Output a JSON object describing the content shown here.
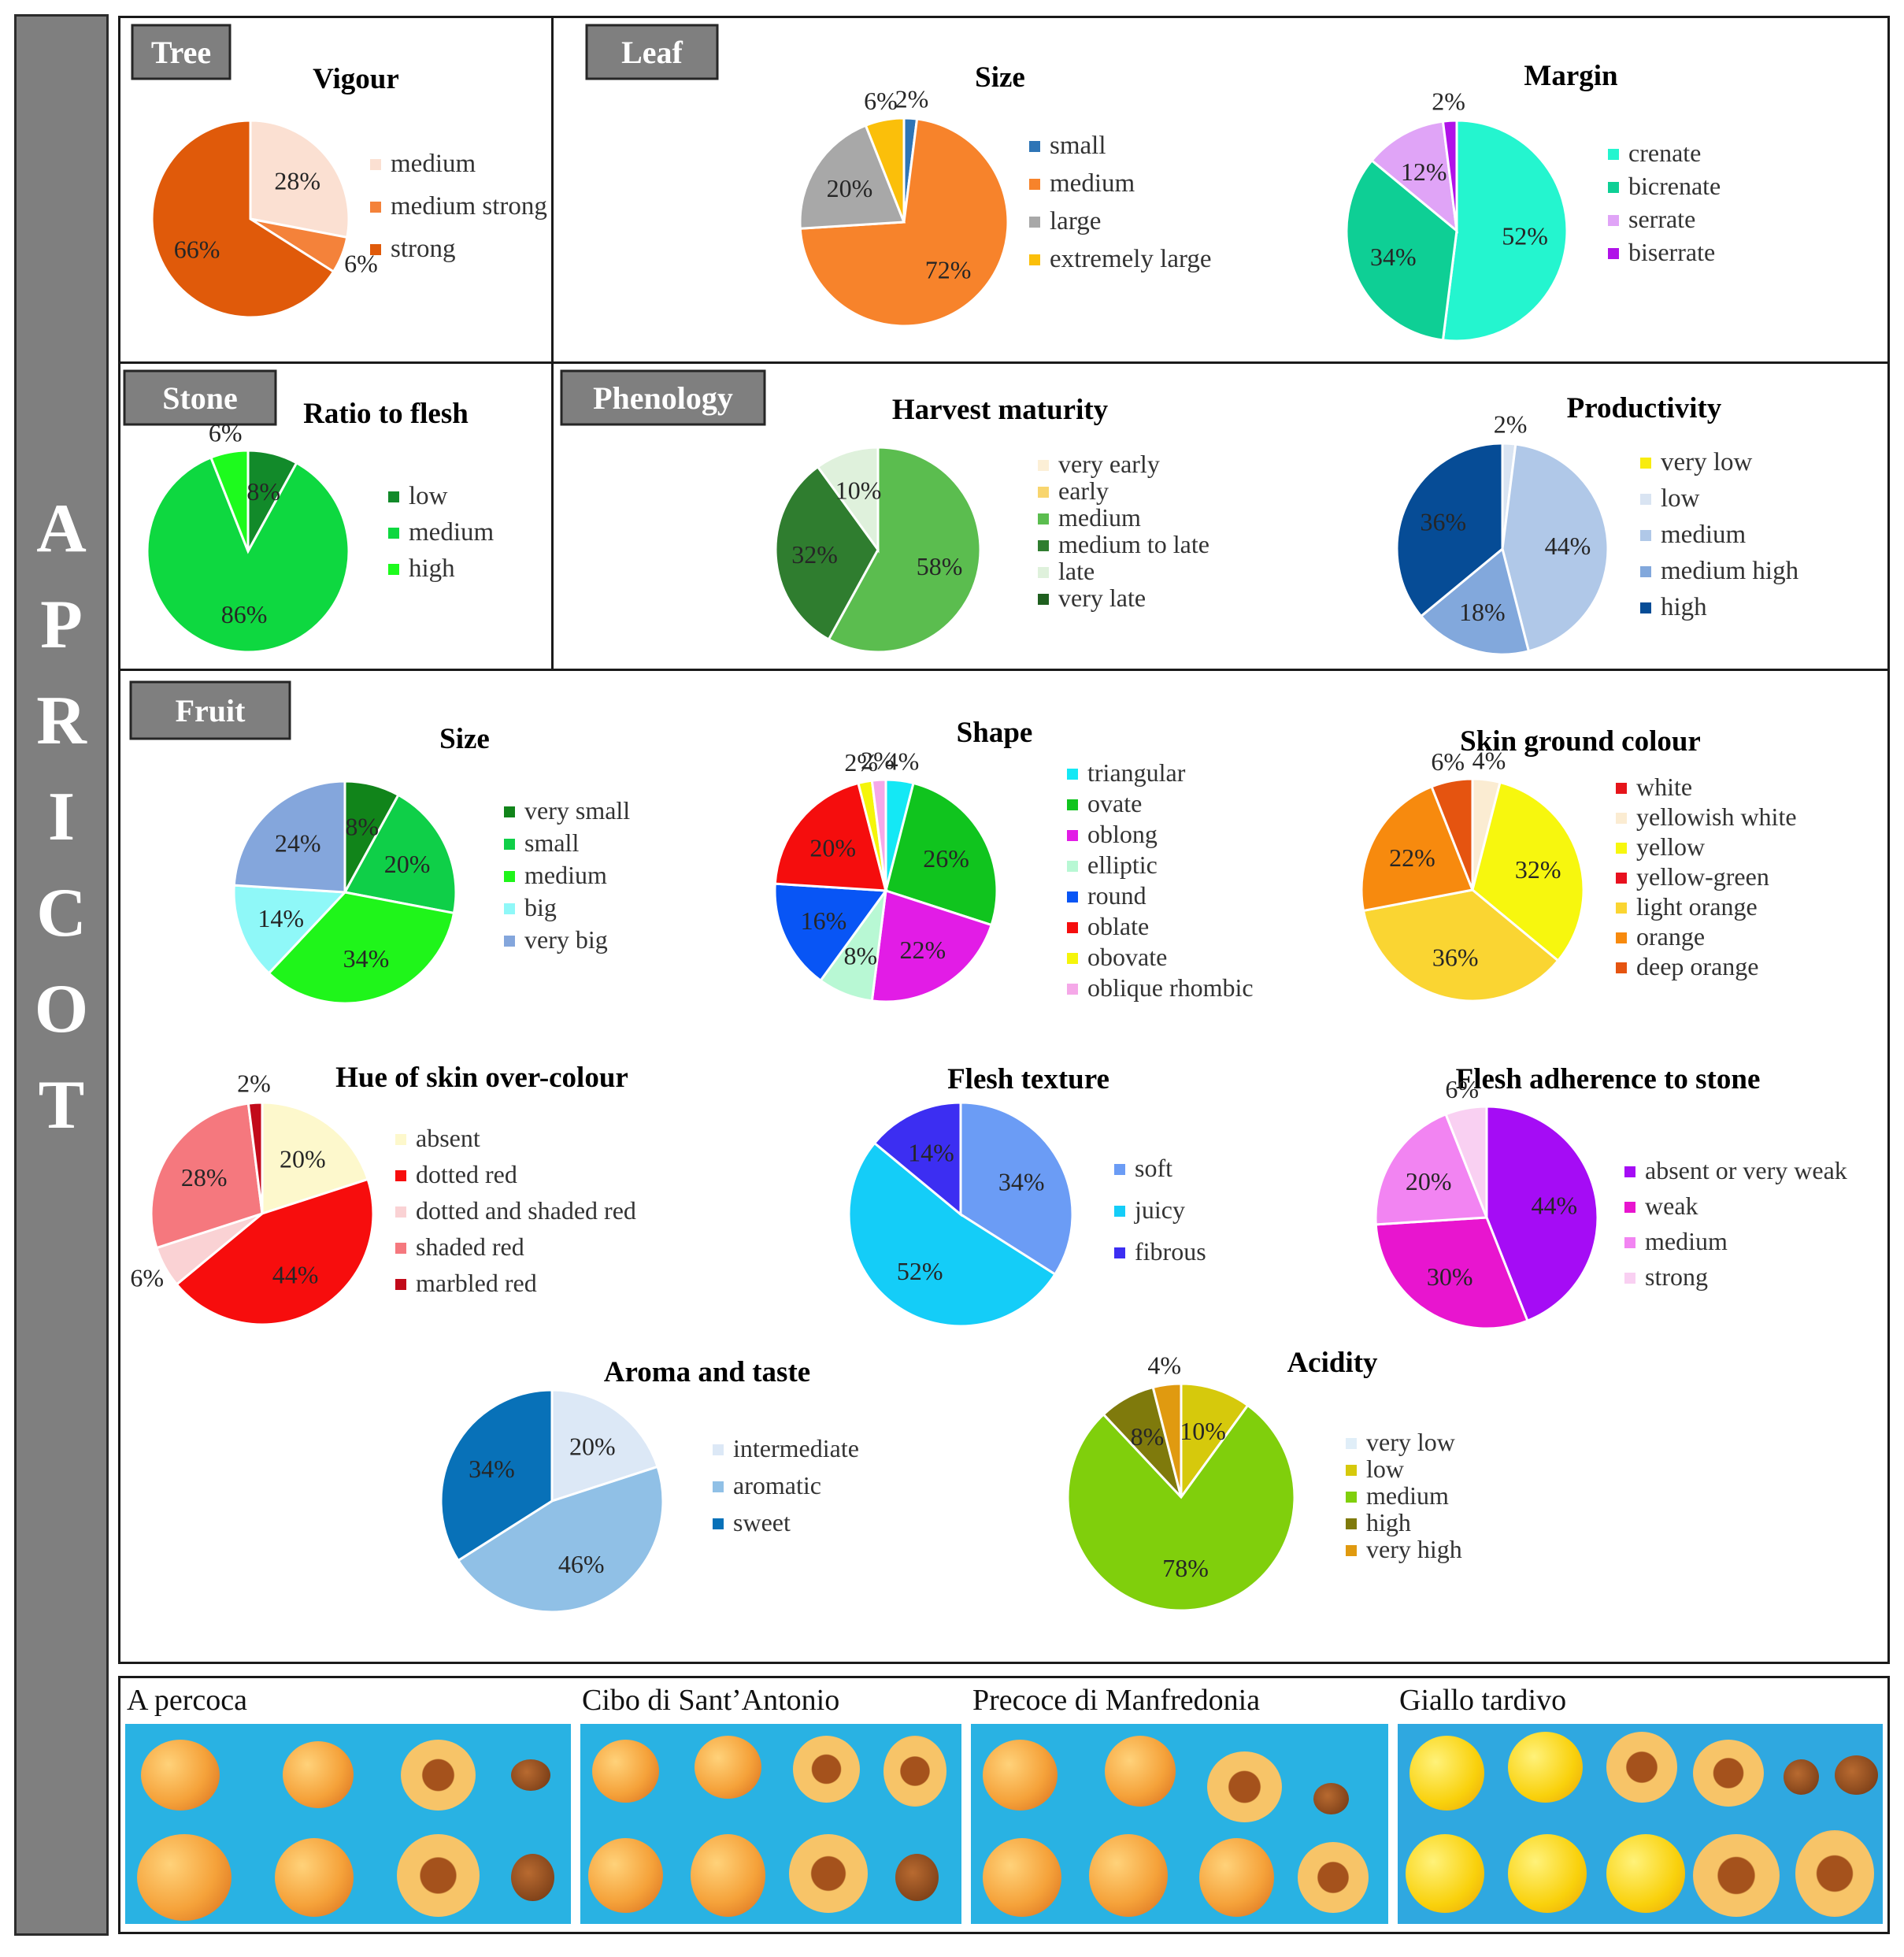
{
  "side_title": "APRICOT",
  "sections": {
    "tree": "Tree",
    "leaf": "Leaf",
    "stone": "Stone",
    "phenology": "Phenology",
    "fruit": "Fruit"
  },
  "chart_data": [
    {
      "id": "vigour",
      "type": "pie",
      "title": "Vigour",
      "section": "Tree",
      "labels": [
        "medium",
        "medium strong",
        "strong"
      ],
      "values": [
        28,
        6,
        66
      ],
      "colors": [
        "#fbe0d2",
        "#f4823a",
        "#e05a0a"
      ]
    },
    {
      "id": "leaf_size",
      "type": "pie",
      "title": "Size",
      "section": "Leaf",
      "labels": [
        "small",
        "medium",
        "large",
        "extremely large"
      ],
      "values": [
        2,
        72,
        20,
        6
      ],
      "colors": [
        "#2e75b6",
        "#f7832b",
        "#a8a8a8",
        "#fbbf0a"
      ]
    },
    {
      "id": "leaf_margin",
      "type": "pie",
      "title": "Margin",
      "section": "Leaf",
      "labels": [
        "crenate",
        "bicrenate",
        "serrate",
        "biserrate"
      ],
      "values": [
        52,
        34,
        12,
        2
      ],
      "colors": [
        "#24f5cf",
        "#0ecf95",
        "#e0a4f7",
        "#b012e8"
      ]
    },
    {
      "id": "stone_ratio",
      "type": "pie",
      "title": "Ratio to flesh",
      "section": "Stone",
      "labels": [
        "low",
        "medium",
        "high"
      ],
      "values": [
        8,
        86,
        6
      ],
      "colors": [
        "#128a2a",
        "#0ed840",
        "#1dfb1d"
      ]
    },
    {
      "id": "harvest",
      "type": "pie",
      "title": "Harvest maturity",
      "section": "Phenology",
      "labels": [
        "very early",
        "early",
        "medium",
        "medium to late",
        "late",
        "very late"
      ],
      "values": [
        0,
        0,
        58,
        32,
        10,
        0
      ],
      "colors": [
        "#fcefd6",
        "#f8d56e",
        "#5bbd4f",
        "#2f7d2f",
        "#dff1dc",
        "#1f5f1f"
      ]
    },
    {
      "id": "productivity",
      "type": "pie",
      "title": "Productivity",
      "section": "Phenology",
      "labels": [
        "very low",
        "low",
        "medium",
        "medium high",
        "high"
      ],
      "values": [
        0,
        2,
        44,
        18,
        36
      ],
      "colors": [
        "#f8ec10",
        "#d9e4f2",
        "#b0c8e8",
        "#82a8dc",
        "#064c96"
      ]
    },
    {
      "id": "fruit_size",
      "type": "pie",
      "title": "Size",
      "section": "Fruit",
      "labels": [
        "very small",
        "small",
        "medium",
        "big",
        "very big"
      ],
      "values": [
        8,
        20,
        34,
        14,
        24
      ],
      "colors": [
        "#11841a",
        "#0fcf48",
        "#1ff51a",
        "#8ff8f8",
        "#84a6dc"
      ]
    },
    {
      "id": "shape",
      "type": "pie",
      "title": "Shape",
      "section": "Fruit",
      "labels": [
        "triangular",
        "ovate",
        "oblong",
        "elliptic",
        "round",
        "oblate",
        "obovate",
        "oblique rhombic"
      ],
      "values": [
        4,
        26,
        22,
        8,
        16,
        20,
        2,
        2
      ],
      "colors": [
        "#14e8f5",
        "#10c41e",
        "#e21ce6",
        "#b8f8d4",
        "#0855f5",
        "#f50d0d",
        "#f5f50a",
        "#f5a8e8"
      ]
    },
    {
      "id": "skin_ground",
      "type": "pie",
      "title": "Skin ground colour",
      "section": "Fruit",
      "labels": [
        "white",
        "yellowish white",
        "yellow",
        "yellow-green",
        "light orange",
        "orange",
        "deep orange"
      ],
      "values": [
        0,
        4,
        32,
        0,
        36,
        22,
        6
      ],
      "colors": [
        "#e6141a",
        "#fbecd2",
        "#f7f70e",
        "#e8101e",
        "#fad532",
        "#f78a0e",
        "#e55410"
      ]
    },
    {
      "id": "hue_over",
      "type": "pie",
      "title": "Hue of skin over-colour",
      "section": "Fruit",
      "labels": [
        "absent",
        "dotted red",
        "dotted and shaded red",
        "shaded red",
        "marbled red"
      ],
      "values": [
        20,
        44,
        6,
        28,
        2
      ],
      "colors": [
        "#fdf8cc",
        "#f70d0d",
        "#fad2d4",
        "#f5787e",
        "#c20a1a"
      ]
    },
    {
      "id": "flesh_texture",
      "type": "pie",
      "title": "Flesh texture",
      "section": "Fruit",
      "labels": [
        "soft",
        "juicy",
        "fibrous"
      ],
      "values": [
        34,
        52,
        14
      ],
      "colors": [
        "#6b9cf5",
        "#14cdf8",
        "#3c2ef2"
      ]
    },
    {
      "id": "adherence",
      "type": "pie",
      "title": "Flesh adherence to stone",
      "section": "Fruit",
      "labels": [
        "absent or very weak",
        "weak",
        "medium",
        "strong"
      ],
      "values": [
        44,
        30,
        20,
        6
      ],
      "colors": [
        "#a50cf5",
        "#e815cf",
        "#f284f2",
        "#f9d0f2"
      ]
    },
    {
      "id": "aroma",
      "type": "pie",
      "title": "Aroma and taste",
      "section": "Fruit",
      "labels": [
        "intermediate",
        "aromatic",
        "sweet"
      ],
      "values": [
        20,
        46,
        34
      ],
      "colors": [
        "#dce8f6",
        "#90c0e6",
        "#0871b8"
      ]
    },
    {
      "id": "acidity",
      "type": "pie",
      "title": "Acidity",
      "section": "Fruit",
      "labels": [
        "very low",
        "low",
        "medium",
        "high",
        "very high"
      ],
      "values": [
        0,
        10,
        78,
        8,
        4
      ],
      "colors": [
        "#e0eef8",
        "#d6c90c",
        "#80cf0c",
        "#7f7a0c",
        "#e09a10"
      ]
    }
  ],
  "cultivars": [
    "A percoca",
    "Cibo di Sant’Antonio",
    "Precoce di Manfredonia",
    "Giallo tardivo"
  ]
}
